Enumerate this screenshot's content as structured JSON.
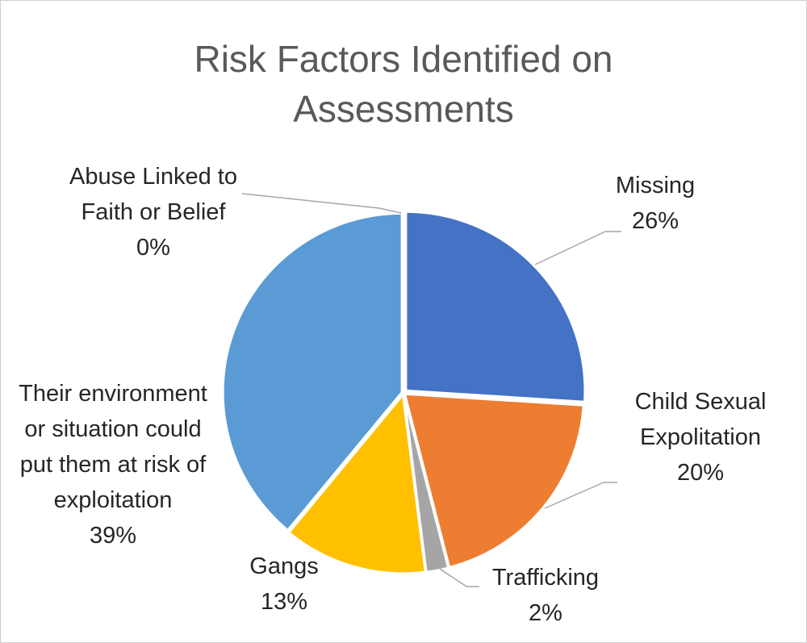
{
  "chart_data": {
    "type": "pie",
    "title": "Risk Factors Identified on Assessments",
    "categories": [
      "Missing",
      "Child Sexual Expolitation",
      "Trafficking",
      "Gangs",
      "Their environment or situation could put them at risk of exploitation",
      "Abuse Linked to Faith or Belief"
    ],
    "values": [
      26,
      20,
      2,
      13,
      39,
      0
    ],
    "value_labels": [
      "26%",
      "20%",
      "2%",
      "13%",
      "39%",
      "0%"
    ],
    "colors": [
      "#4472c4",
      "#ed7d31",
      "#a5a5a5",
      "#ffc000",
      "#5b9bd5",
      "#70ad47"
    ]
  }
}
